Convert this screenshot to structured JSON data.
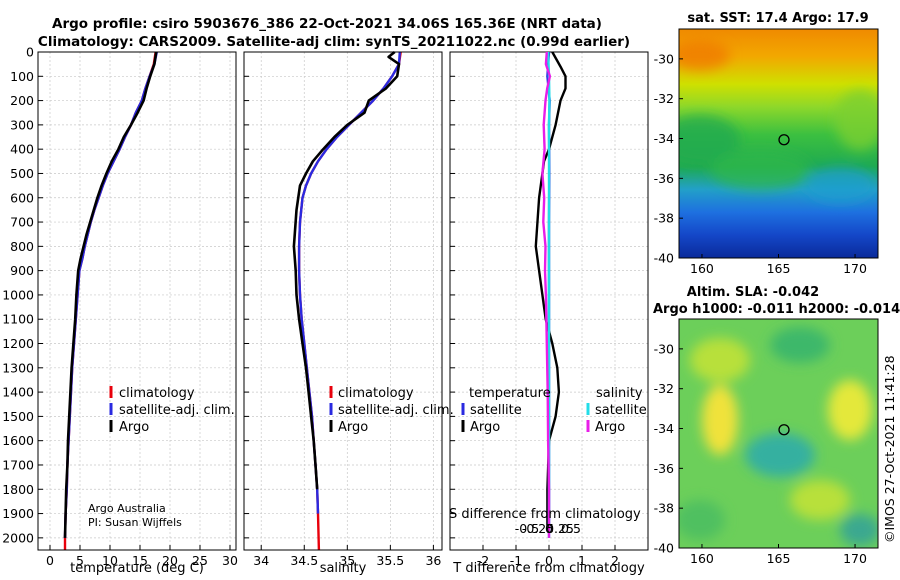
{
  "header": {
    "line1": "Argo profile: csiro 5903676_386 22-Oct-2021 34.06S 165.36E (NRT data)",
    "line2": "Climatology: CARS2009. Satellite-adj clim: synTS_20211022.nc (0.99d earlier)"
  },
  "credits": {
    "org": "Argo Australia",
    "pi": "PI: Susan Wijffels",
    "watermark": "©IMOS 27-Oct-2021 11:41:28"
  },
  "colors": {
    "climatology": "#e8000b",
    "satellite_adj": "#2a2ae0",
    "argo": "#000000",
    "sat_salinity": "#22dde8",
    "argo_salinity": "#e81ee8"
  },
  "chart_data": [
    {
      "type": "line",
      "id": "temperature",
      "xlabel": "temperature (deg C)",
      "ylabel": "",
      "xlim": [
        -2,
        31
      ],
      "ylim": [
        2050,
        0
      ],
      "xticks": [
        0,
        5,
        10,
        15,
        20,
        25,
        30
      ],
      "yticks": [
        0,
        100,
        200,
        300,
        400,
        500,
        600,
        700,
        800,
        900,
        1000,
        1100,
        1200,
        1300,
        1400,
        1500,
        1600,
        1700,
        1800,
        1900,
        2000
      ],
      "grid": true,
      "legend": [
        "climatology",
        "satellite-adj. clim.",
        "Argo"
      ],
      "series": [
        {
          "name": "climatology",
          "x": [
            17.6,
            17.3,
            16.6,
            15.9,
            15.3,
            14.3,
            13.5,
            12.5,
            11.6,
            10.6,
            9.6,
            8.8,
            8.1,
            7.4,
            6.8,
            6.3,
            5.8,
            5.4,
            4.9,
            4.6,
            4.3,
            4.0,
            3.7,
            3.5,
            3.3,
            3.1,
            2.9,
            2.8,
            2.7,
            2.6,
            2.5,
            2.5
          ],
          "y": [
            0,
            50,
            100,
            150,
            200,
            250,
            300,
            350,
            400,
            450,
            500,
            550,
            600,
            650,
            700,
            750,
            800,
            850,
            900,
            1000,
            1100,
            1200,
            1300,
            1400,
            1500,
            1600,
            1700,
            1800,
            1850,
            1900,
            2000,
            2050
          ]
        },
        {
          "name": "satellite-adj. clim.",
          "x": [
            17.8,
            17.4,
            16.6,
            15.9,
            15.3,
            14.3,
            13.5,
            12.5,
            11.6,
            10.6,
            9.6,
            8.8,
            8.1,
            7.4,
            6.8,
            6.3,
            5.8,
            5.4,
            4.9,
            4.6,
            4.3,
            4.0,
            3.7,
            3.5,
            3.3,
            3.1,
            2.9,
            2.8,
            2.7,
            2.6,
            2.5
          ],
          "y": [
            0,
            50,
            100,
            150,
            200,
            250,
            300,
            350,
            400,
            450,
            500,
            550,
            600,
            650,
            700,
            750,
            800,
            850,
            900,
            1000,
            1100,
            1200,
            1300,
            1400,
            1500,
            1600,
            1700,
            1800,
            1850,
            1900,
            2000
          ]
        },
        {
          "name": "Argo",
          "x": [
            17.7,
            17.4,
            16.7,
            16.1,
            15.6,
            14.6,
            13.5,
            12.3,
            11.4,
            10.3,
            9.4,
            8.6,
            7.9,
            7.3,
            6.7,
            6.1,
            5.6,
            5.1,
            4.7,
            4.4,
            4.2,
            3.9,
            3.6,
            3.4,
            3.2,
            3.0,
            2.9,
            2.7,
            2.6,
            2.5
          ],
          "y": [
            0,
            50,
            100,
            150,
            200,
            250,
            300,
            350,
            400,
            450,
            500,
            550,
            600,
            650,
            700,
            750,
            800,
            850,
            900,
            1000,
            1100,
            1200,
            1300,
            1400,
            1500,
            1600,
            1700,
            1800,
            1900,
            2000
          ]
        }
      ]
    },
    {
      "type": "line",
      "id": "salinity",
      "xlabel": "salinity",
      "xlim": [
        33.8,
        36.1
      ],
      "ylim": [
        2050,
        0
      ],
      "xticks": [
        34,
        34.5,
        35,
        35.5,
        36
      ],
      "grid": true,
      "legend": [
        "climatology",
        "satellite-adj. clim.",
        "Argo"
      ],
      "series": [
        {
          "name": "climatology",
          "x": [
            35.62,
            35.6,
            35.52,
            35.42,
            35.3,
            35.16,
            35.02,
            34.88,
            34.76,
            34.66,
            34.58,
            34.52,
            34.48,
            34.45,
            34.44,
            34.44,
            34.45,
            34.47,
            34.5,
            34.53,
            34.56,
            34.59,
            34.61,
            34.63,
            34.65,
            34.66,
            34.67
          ],
          "y": [
            0,
            50,
            100,
            150,
            200,
            250,
            300,
            350,
            400,
            450,
            500,
            550,
            600,
            700,
            800,
            900,
            1000,
            1100,
            1200,
            1300,
            1400,
            1500,
            1600,
            1700,
            1800,
            1900,
            2050
          ]
        },
        {
          "name": "satellite-adj. clim.",
          "x": [
            35.61,
            35.6,
            35.52,
            35.42,
            35.3,
            35.16,
            35.02,
            34.88,
            34.76,
            34.66,
            34.58,
            34.52,
            34.48,
            34.45,
            34.44,
            34.44,
            34.45,
            34.47,
            34.5,
            34.53,
            34.56,
            34.59,
            34.61,
            34.63,
            34.65,
            34.66
          ],
          "y": [
            0,
            50,
            100,
            150,
            200,
            250,
            300,
            350,
            400,
            450,
            500,
            550,
            600,
            700,
            800,
            900,
            1000,
            1100,
            1200,
            1300,
            1400,
            1500,
            1600,
            1700,
            1800,
            1900
          ]
        },
        {
          "name": "Argo",
          "x": [
            35.55,
            35.48,
            35.6,
            35.58,
            35.45,
            35.25,
            35.2,
            35.0,
            34.85,
            34.72,
            34.6,
            34.52,
            34.45,
            34.41,
            34.38,
            34.4,
            34.41,
            34.44,
            34.48,
            34.52,
            34.55,
            34.58,
            34.61,
            34.63,
            34.65
          ],
          "y": [
            0,
            20,
            50,
            100,
            150,
            200,
            250,
            300,
            350,
            400,
            450,
            500,
            550,
            650,
            800,
            900,
            1000,
            1100,
            1200,
            1300,
            1400,
            1500,
            1600,
            1700,
            1800
          ]
        }
      ]
    },
    {
      "type": "line",
      "id": "difference",
      "xlabel": "T difference from climatology",
      "xlabel2": "S difference from climatology",
      "xlim": [
        -3,
        3
      ],
      "ylim": [
        2050,
        0
      ],
      "xticks": [
        -2,
        -1,
        0,
        1,
        2
      ],
      "xticks2_labels": [
        "-0.5",
        "-0.25",
        "0",
        "0.25",
        "0.5"
      ],
      "xticks2_values": [
        -0.5,
        -0.25,
        0,
        0.25,
        0.5
      ],
      "grid": true,
      "legend": {
        "temperature_header": "temperature",
        "salinity_header": "salinity",
        "satellite": "satellite",
        "argo": "Argo"
      },
      "series": [
        {
          "name": "T satellite",
          "x": [
            0.0,
            -0.05,
            0.02,
            0.0,
            0.01,
            0.0,
            0.0,
            0.0,
            0.0,
            0.0,
            0.0,
            0.0
          ],
          "y": [
            0,
            100,
            200,
            300,
            500,
            700,
            900,
            1100,
            1300,
            1500,
            1700,
            1950
          ]
        },
        {
          "name": "T Argo",
          "x": [
            0.1,
            0.35,
            0.5,
            0.5,
            0.35,
            0.2,
            0.0,
            -0.15,
            -0.2,
            -0.3,
            -0.4,
            -0.3,
            -0.2,
            -0.1,
            0.1,
            0.25,
            0.3,
            0.2,
            0.0,
            -0.05,
            -0.05
          ],
          "y": [
            0,
            60,
            100,
            150,
            200,
            300,
            400,
            450,
            500,
            600,
            800,
            900,
            1000,
            1100,
            1200,
            1300,
            1400,
            1500,
            1600,
            1800,
            1950
          ]
        },
        {
          "name": "S satellite",
          "x": [
            -0.02,
            0.0,
            0.01,
            0.0,
            0.0,
            0.0,
            0.0,
            0.0,
            0.0,
            0.0,
            0.0,
            0.0
          ],
          "y": [
            0,
            100,
            200,
            300,
            500,
            700,
            900,
            1100,
            1300,
            1500,
            1700,
            2000
          ]
        },
        {
          "name": "S Argo",
          "x": [
            -0.05,
            -0.07,
            0.02,
            -0.04,
            -0.08,
            -0.12,
            -0.1,
            -0.15,
            -0.11,
            -0.13,
            -0.08,
            -0.09,
            -0.07,
            -0.05,
            -0.03,
            -0.02,
            0.0,
            0.0
          ],
          "y": [
            0,
            50,
            100,
            150,
            200,
            300,
            400,
            500,
            600,
            700,
            800,
            900,
            1000,
            1200,
            1400,
            1600,
            1800,
            2000
          ]
        }
      ]
    },
    {
      "type": "heatmap",
      "id": "sst_map",
      "title": "sat. SST: 17.4 Argo: 17.9",
      "xlim": [
        158.5,
        171.5
      ],
      "ylim": [
        -40,
        -28.5
      ],
      "xticks": [
        160,
        165,
        170
      ],
      "yticks": [
        -30,
        -32,
        -34,
        -36,
        -38,
        -40
      ],
      "marker": {
        "lon": 165.36,
        "lat": -34.06
      }
    },
    {
      "type": "heatmap",
      "id": "sla_map",
      "title": "Altim. SLA: -0.042",
      "subtitle": "Argo h1000: -0.011 h2000: -0.014",
      "xlim": [
        158.5,
        171.5
      ],
      "ylim": [
        -40,
        -28.5
      ],
      "xticks": [
        160,
        165,
        170
      ],
      "yticks": [
        -30,
        -32,
        -34,
        -36,
        -38,
        -40
      ],
      "marker": {
        "lon": 165.36,
        "lat": -34.06
      }
    }
  ]
}
